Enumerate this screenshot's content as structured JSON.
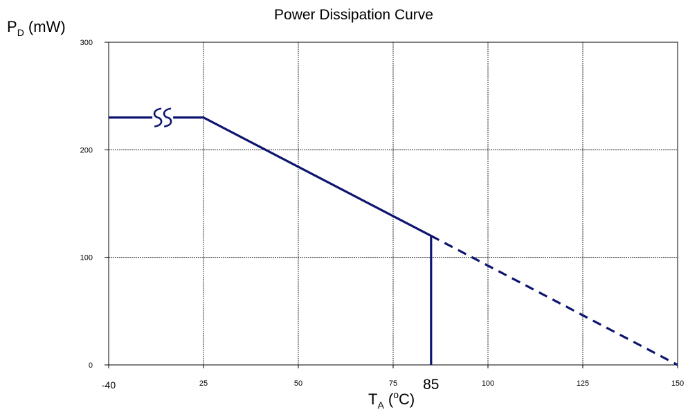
{
  "chart_data": {
    "type": "line",
    "title": "Power Dissipation Curve",
    "ylabel": {
      "main": "P",
      "sub": "D",
      "unit": " (mW)"
    },
    "xlabel": {
      "main": "T",
      "sub": "A",
      "open": " (",
      "sup": "o",
      "close": "C)"
    },
    "x_ticks": [
      "-40",
      "25",
      "50",
      "75",
      "100",
      "125",
      "150"
    ],
    "x_tick_values": [
      0,
      25,
      50,
      75,
      100,
      125,
      150
    ],
    "y_ticks": [
      "0",
      "100",
      "200",
      "300"
    ],
    "y_tick_values": [
      0,
      100,
      200,
      300
    ],
    "xlim": [
      0,
      150
    ],
    "ylim": [
      0,
      300
    ],
    "axis_break": {
      "at_x": -10,
      "shown_on_axis_as": "-40"
    },
    "grid": true,
    "line_color": "#0d1570",
    "series": [
      {
        "style": "solid",
        "x": [
          -40,
          25,
          85
        ],
        "y": [
          230,
          230,
          120
        ]
      },
      {
        "style": "dashed",
        "x": [
          85,
          150
        ],
        "y": [
          120,
          0
        ]
      },
      {
        "style": "solid",
        "x": [
          85,
          85
        ],
        "y": [
          120,
          0
        ]
      }
    ],
    "annotations": [
      {
        "text": "85",
        "x": 85
      }
    ]
  }
}
